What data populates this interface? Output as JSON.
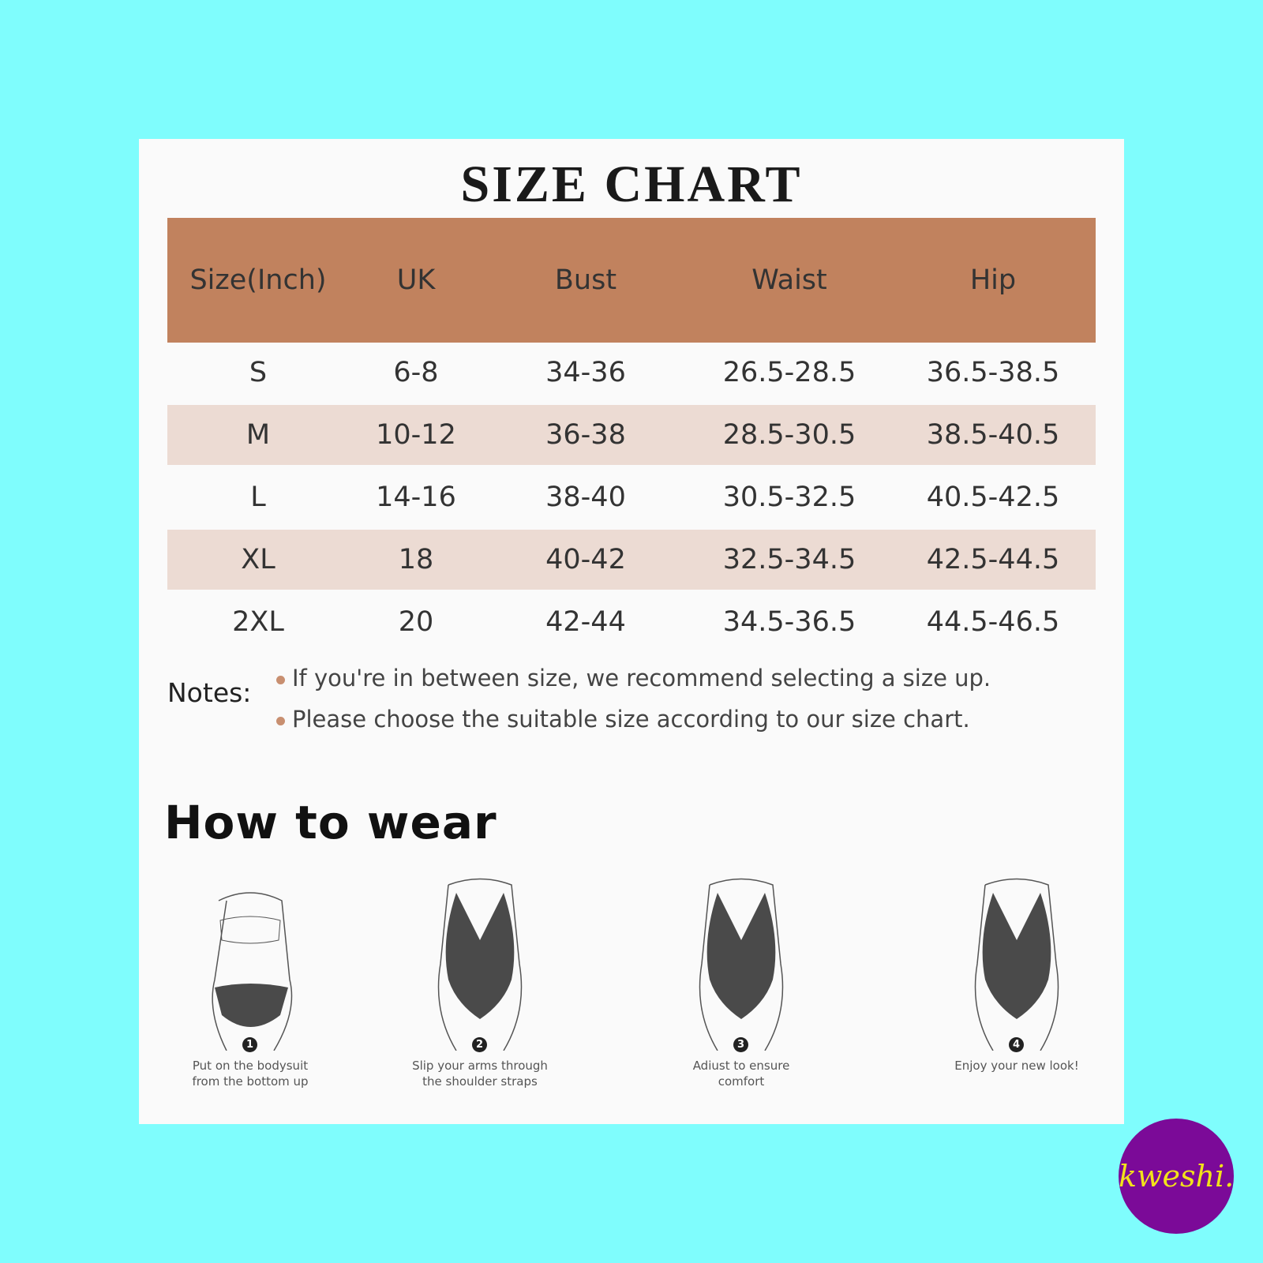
{
  "title": "SIZE CHART",
  "table": {
    "header": [
      "Size(Inch)",
      "UK",
      "Bust",
      "Waist",
      "Hip"
    ],
    "rows": [
      [
        "S",
        "6-8",
        "34-36",
        "26.5-28.5",
        "36.5-38.5"
      ],
      [
        "M",
        "10-12",
        "36-38",
        "28.5-30.5",
        "38.5-40.5"
      ],
      [
        "L",
        "14-16",
        "38-40",
        "30.5-32.5",
        "40.5-42.5"
      ],
      [
        "XL",
        "18",
        "40-42",
        "32.5-34.5",
        "42.5-44.5"
      ],
      [
        "2XL",
        "20",
        "42-44",
        "34.5-36.5",
        "44.5-46.5"
      ]
    ]
  },
  "notes": {
    "label": "Notes:",
    "items": [
      "If you're in between size, we recommend selecting a size up.",
      "Please choose the suitable size according to our size chart."
    ]
  },
  "how_to_wear": {
    "title": "How to wear",
    "steps": [
      {
        "number": "1",
        "caption": [
          "Put on the bodysuit",
          "from the bottom up"
        ]
      },
      {
        "number": "2",
        "caption": [
          "Slip your arms through",
          "the shoulder straps"
        ]
      },
      {
        "number": "3",
        "caption": [
          "Adiust to ensure",
          "comfort"
        ]
      },
      {
        "number": "4",
        "caption": [
          "Enjoy your new look!"
        ]
      }
    ]
  },
  "logo": {
    "text": "kweshi."
  }
}
